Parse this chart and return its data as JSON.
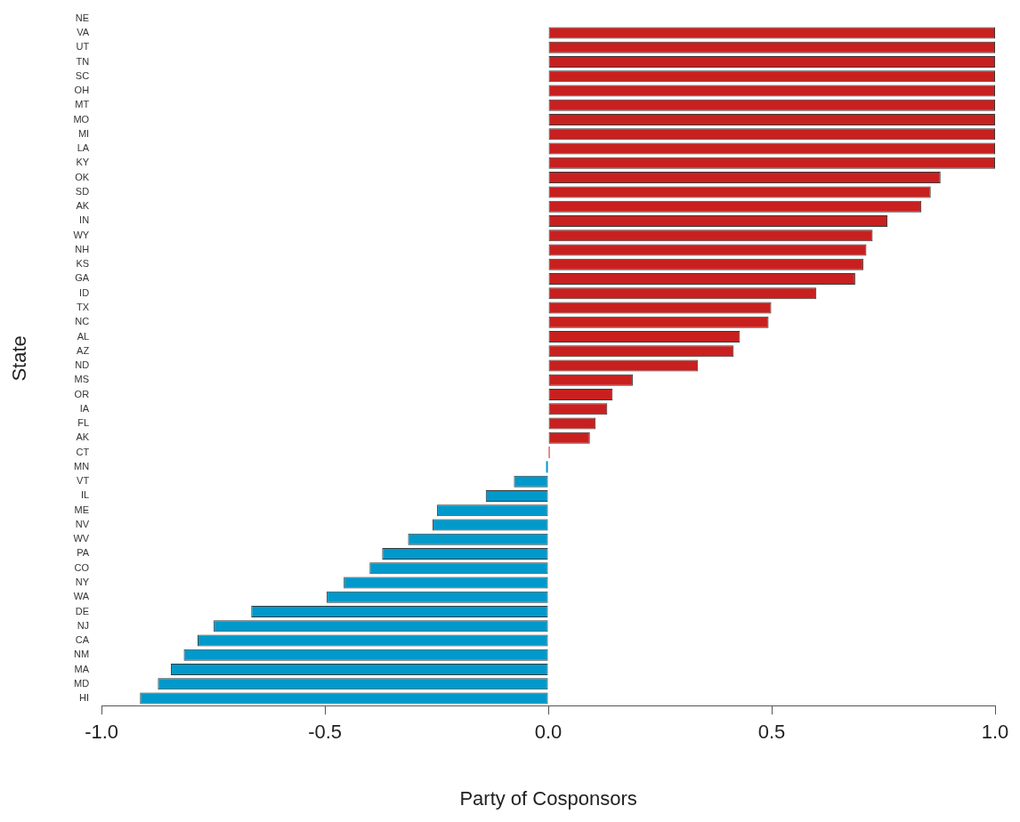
{
  "chart_data": {
    "type": "bar",
    "orientation": "horizontal",
    "xlabel": "Party of Cosponsors",
    "ylabel": "State",
    "categories": [
      "NE",
      "VA",
      "UT",
      "TN",
      "SC",
      "OH",
      "MT",
      "MO",
      "MI",
      "LA",
      "KY",
      "OK",
      "SD",
      "AK",
      "IN",
      "WY",
      "NH",
      "KS",
      "GA",
      "ID",
      "TX",
      "NC",
      "AL",
      "AZ",
      "ND",
      "MS",
      "OR",
      "IA",
      "FL",
      "AK",
      "CT",
      "MN",
      "VT",
      "IL",
      "ME",
      "NV",
      "WV",
      "PA",
      "CO",
      "NY",
      "WA",
      "DE",
      "NJ",
      "CA",
      "NM",
      "MA",
      "MD",
      "HI"
    ],
    "values": [
      null,
      1,
      1,
      1,
      1,
      1,
      1,
      1,
      1,
      1,
      1,
      0.878,
      0.856,
      0.835,
      0.759,
      0.726,
      0.712,
      0.705,
      0.687,
      0.6,
      0.499,
      0.493,
      0.429,
      0.415,
      0.335,
      0.189,
      0.144,
      0.132,
      0.106,
      0.093,
      0.003,
      -0.005,
      -0.077,
      -0.14,
      -0.249,
      -0.259,
      -0.314,
      -0.372,
      -0.4,
      -0.458,
      -0.496,
      -0.665,
      -0.749,
      -0.785,
      -0.816,
      -0.845,
      -0.874,
      -0.914
    ],
    "colors": [
      "#c8201f",
      "#c8201f",
      "#c8201f",
      "#c8201f",
      "#c8201f",
      "#c8201f",
      "#c8201f",
      "#c8201f",
      "#c8201f",
      "#c8201f",
      "#c8201f",
      "#c8201f",
      "#c8201f",
      "#c8201f",
      "#c8201f",
      "#c8201f",
      "#c8201f",
      "#c8201f",
      "#c8201f",
      "#c8201f",
      "#c8201f",
      "#c8201f",
      "#c8201f",
      "#c8201f",
      "#c8201f",
      "#c8201f",
      "#c8201f",
      "#c8201f",
      "#c8201f",
      "#c8201f",
      "#c8201f",
      "#0099cc",
      "#0099cc",
      "#0099cc",
      "#0099cc",
      "#0099cc",
      "#0099cc",
      "#0099cc",
      "#0099cc",
      "#0099cc",
      "#0099cc",
      "#0099cc",
      "#0099cc",
      "#0099cc",
      "#0099cc",
      "#0099cc",
      "#0099cc",
      "#0099cc"
    ],
    "xlim": [
      -1,
      1
    ],
    "xticks": [
      {
        "value": -1,
        "label": "-1.0"
      },
      {
        "value": -0.5,
        "label": "-0.5"
      },
      {
        "value": 0,
        "label": "0.0"
      },
      {
        "value": 0.5,
        "label": "0.5"
      },
      {
        "value": 1,
        "label": "1.0"
      }
    ],
    "grid": false
  }
}
